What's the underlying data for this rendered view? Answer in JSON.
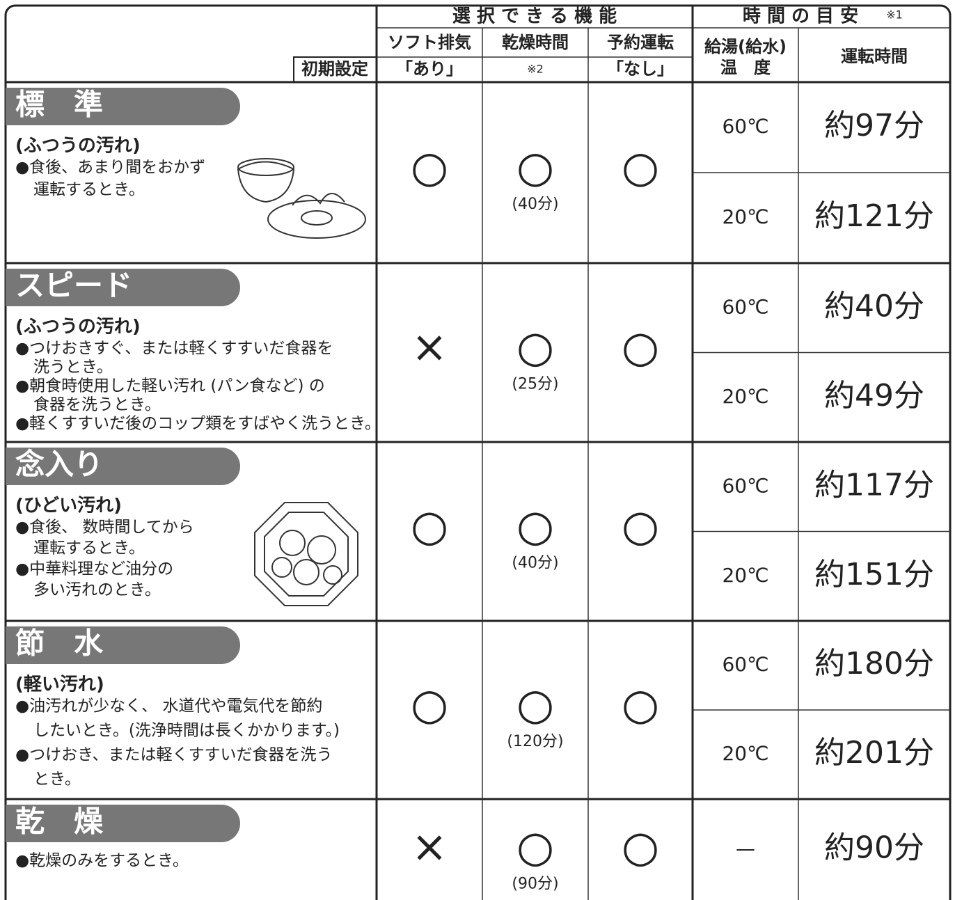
{
  "header": {
    "functions_title": "選 択 で き る 機 能",
    "time_title": "時 間 の 目 安",
    "time_note": "※1",
    "columns": [
      "ソフト排気",
      "乾燥時間",
      "予約運転"
    ],
    "default_label": "初期設定",
    "defaults": [
      "「あり」",
      "※2",
      "「なし」"
    ],
    "water_temp": [
      "給湯(給水)",
      "温　度"
    ],
    "run_time": "運転時間"
  },
  "modes": [
    {
      "name": "標　準",
      "subtitle": "(ふつうの汚れ)",
      "bullets": [
        [
          "●食後、あまり間をおかず",
          "運転するとき。"
        ]
      ],
      "soft": "○",
      "dry": "○",
      "dry_time": "(40分)",
      "timer": "○",
      "times": [
        {
          "temp": "60℃",
          "time": "約97分"
        },
        {
          "temp": "20℃",
          "time": "約121分"
        }
      ]
    },
    {
      "name": "スピード",
      "subtitle": "(ふつうの汚れ)",
      "bullets": [
        [
          "●つけおきすぐ、または軽くすすいだ食器を",
          "洗うとき。"
        ],
        [
          "●朝食時使用した軽い汚れ (パン食など) の",
          "食器を洗うとき。"
        ],
        [
          "●軽くすすいだ後のコップ類をすばやく洗うとき。"
        ]
      ],
      "soft": "×",
      "dry": "○",
      "dry_time": "(25分)",
      "timer": "○",
      "times": [
        {
          "temp": "60℃",
          "time": "約40分"
        },
        {
          "temp": "20℃",
          "time": "約49分"
        }
      ]
    },
    {
      "name": "念入り",
      "subtitle": "(ひどい汚れ)",
      "bullets": [
        [
          "●食後、 数時間してから",
          "運転するとき。"
        ],
        [
          "●中華料理など油分の",
          "多い汚れのとき。"
        ]
      ],
      "soft": "○",
      "dry": "○",
      "dry_time": "(40分)",
      "timer": "○",
      "times": [
        {
          "temp": "60℃",
          "time": "約117分"
        },
        {
          "temp": "20℃",
          "time": "約151分"
        }
      ]
    },
    {
      "name": "節　水",
      "subtitle": "(軽い汚れ)",
      "bullets": [
        [
          "●油汚れが少なく、 水道代や電気代を節約",
          "したいとき。(洗浄時間は長くかかります。)"
        ],
        [
          "●つけおき、または軽くすすいだ食器を洗う",
          "とき。"
        ]
      ],
      "soft": "○",
      "dry": "○",
      "dry_time": "(120分)",
      "timer": "○",
      "times": [
        {
          "temp": "60℃",
          "time": "約180分"
        },
        {
          "temp": "20℃",
          "time": "約201分"
        }
      ]
    },
    {
      "name": "乾　燥",
      "bullets": [
        [
          "●乾燥のみをするとき。"
        ]
      ],
      "soft": "×",
      "dry": "○",
      "dry_time": "(90分)",
      "timer": "○",
      "times": [
        {
          "temp": "—",
          "time": "約90分"
        }
      ]
    }
  ]
}
